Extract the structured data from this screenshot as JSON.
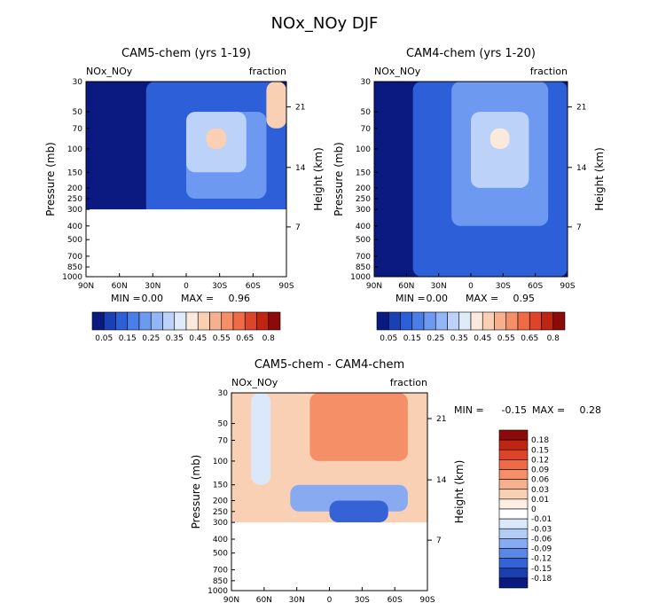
{
  "figure_title": "NOx_NOy DJF",
  "chart_data": [
    {
      "type": "heatmap",
      "title": "CAM5-chem (yrs 1-19)",
      "left_label": "NOx_NOy",
      "right_label": "fraction",
      "ylabel": "Pressure (mb)",
      "ylabel_right": "Height (km)",
      "x_ticks": [
        "90N",
        "60N",
        "30N",
        "0",
        "30S",
        "60S",
        "90S"
      ],
      "y_ticks": [
        "30",
        "50",
        "70",
        "100",
        "150",
        "200",
        "250",
        "300",
        "400",
        "500",
        "700",
        "850",
        "1000"
      ],
      "height_ticks": [
        "21",
        "14",
        "7"
      ],
      "stats": {
        "min_label": "MIN =",
        "min": "0.00",
        "max_label": "MAX =",
        "max": "0.96"
      },
      "colorbar_labels": [
        "0.05",
        "0.15",
        "0.25",
        "0.35",
        "0.45",
        "0.55",
        "0.65",
        "0.8"
      ],
      "colorbar_colors": [
        "#0a1a80",
        "#1b3fb5",
        "#2d5fd8",
        "#4a7ee8",
        "#6d9af0",
        "#93b6f5",
        "#bcd2f8",
        "#e0ebfa",
        "#fbeadb",
        "#fad0b5",
        "#f7b08e",
        "#f48f68",
        "#ee6b45",
        "#de4528",
        "#c02513",
        "#8b0a0a"
      ],
      "zones": [
        {
          "color": "#0a1a80",
          "cells": [
            [
              0,
              0,
              3,
              13
            ]
          ]
        },
        {
          "color": "#2d5fd8",
          "cells": [
            [
              3,
              0,
              10,
              8
            ]
          ]
        },
        {
          "color": "#6d9af0",
          "cells": [
            [
              5,
              1,
              9,
              6
            ]
          ]
        },
        {
          "color": "#bcd2f8",
          "cells": [
            [
              5,
              1,
              8,
              4
            ]
          ]
        },
        {
          "color": "#fad0b5",
          "cells": [
            [
              6,
              2,
              7,
              3
            ]
          ]
        },
        {
          "color": "#fad0b5",
          "cells": [
            [
              9,
              0,
              10,
              2
            ]
          ]
        }
      ],
      "mask_from_level": 8
    },
    {
      "type": "heatmap",
      "title": "CAM4-chem (yrs 1-20)",
      "left_label": "NOx_NOy",
      "right_label": "fraction",
      "ylabel": "Pressure (mb)",
      "ylabel_right": "Height (km)",
      "x_ticks": [
        "90N",
        "60N",
        "30N",
        "0",
        "30S",
        "60S",
        "90S"
      ],
      "y_ticks": [
        "30",
        "50",
        "70",
        "100",
        "150",
        "200",
        "250",
        "300",
        "400",
        "500",
        "700",
        "850",
        "1000"
      ],
      "height_ticks": [
        "21",
        "14",
        "7"
      ],
      "stats": {
        "min_label": "MIN =",
        "min": "0.00",
        "max_label": "MAX =",
        "max": "0.95"
      },
      "colorbar_labels": [
        "0.05",
        "0.15",
        "0.25",
        "0.35",
        "0.45",
        "0.55",
        "0.65",
        "0.8"
      ],
      "colorbar_colors": [
        "#0a1a80",
        "#1b3fb5",
        "#2d5fd8",
        "#4a7ee8",
        "#6d9af0",
        "#93b6f5",
        "#bcd2f8",
        "#e0ebfa",
        "#fbeadb",
        "#fad0b5",
        "#f7b08e",
        "#f48f68",
        "#ee6b45",
        "#de4528",
        "#c02513",
        "#8b0a0a"
      ],
      "zones": [
        {
          "color": "#0a1a80",
          "cells": [
            [
              0,
              0,
              2,
              13
            ]
          ]
        },
        {
          "color": "#2d5fd8",
          "cells": [
            [
              2,
              0,
              10,
              13
            ]
          ]
        },
        {
          "color": "#6d9af0",
          "cells": [
            [
              4,
              0,
              9,
              8
            ]
          ]
        },
        {
          "color": "#bcd2f8",
          "cells": [
            [
              5,
              1,
              8,
              5
            ]
          ]
        },
        {
          "color": "#fbeadb",
          "cells": [
            [
              6,
              2,
              7,
              3
            ]
          ]
        },
        {
          "color": "#f7b08e",
          "cells": [
            [
              5,
              12,
              9,
              13
            ]
          ]
        }
      ],
      "mask_from_level": 99
    },
    {
      "type": "heatmap",
      "title": "CAM5-chem - CAM4-chem",
      "left_label": "NOx_NOy",
      "right_label": "fraction",
      "ylabel": "Pressure (mb)",
      "ylabel_right": "Height (km)",
      "x_ticks": [
        "90N",
        "60N",
        "30N",
        "0",
        "30S",
        "60S",
        "90S"
      ],
      "y_ticks": [
        "30",
        "50",
        "70",
        "100",
        "150",
        "200",
        "250",
        "300",
        "400",
        "500",
        "700",
        "850",
        "1000"
      ],
      "height_ticks": [
        "21",
        "14",
        "7"
      ],
      "stats": {
        "min_label": "MIN =",
        "min": "-0.15",
        "max_label": "MAX =",
        "max": "0.28"
      },
      "colorbar_labels": [
        "0.18",
        "0.15",
        "0.12",
        "0.09",
        "0.06",
        "0.03",
        "0.01",
        "0",
        "-0.01",
        "-0.03",
        "-0.06",
        "-0.09",
        "-0.12",
        "-0.15",
        "-0.18"
      ],
      "colorbar_colors": [
        "#8b0a0a",
        "#c02513",
        "#de4528",
        "#ee6b45",
        "#f48f68",
        "#f7b08e",
        "#fad0b5",
        "#fdeee3",
        "#ffffff",
        "#dbe7fa",
        "#b3ccf5",
        "#88aaf0",
        "#5b87e6",
        "#3563d6",
        "#1a3fb0",
        "#0a1a80"
      ],
      "zones": [
        {
          "color": "#fad0b5",
          "cells": [
            [
              0,
              0,
              10,
              5
            ]
          ]
        },
        {
          "color": "#dbe7fa",
          "cells": [
            [
              1,
              0,
              2,
              4
            ]
          ]
        },
        {
          "color": "#f48f68",
          "cells": [
            [
              4,
              0,
              9,
              3
            ]
          ]
        },
        {
          "color": "#88aaf0",
          "cells": [
            [
              3,
              4,
              9,
              6
            ]
          ]
        },
        {
          "color": "#3563d6",
          "cells": [
            [
              5,
              5,
              8,
              7
            ]
          ]
        },
        {
          "color": "#de4528",
          "cells": [
            [
              4,
              7,
              9,
              8
            ]
          ]
        }
      ],
      "mask_from_level": 8
    }
  ]
}
